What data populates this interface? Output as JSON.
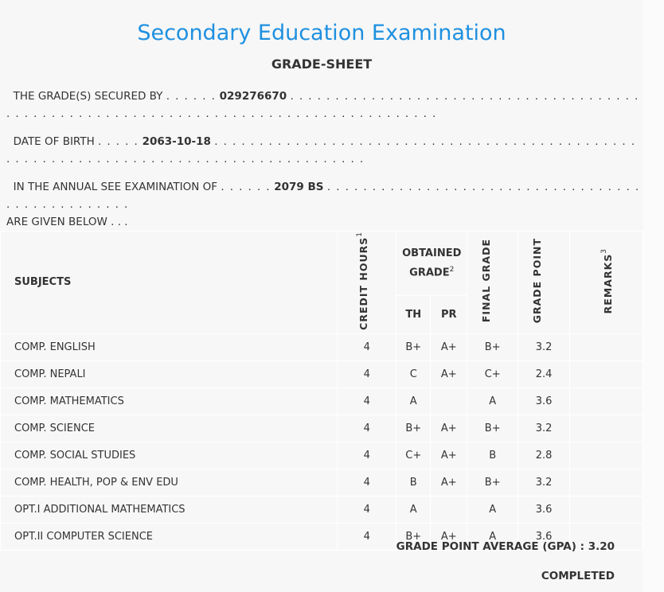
{
  "header": {
    "title": "Secondary Education Examination",
    "subtitle": "GRADE-SHEET"
  },
  "info": {
    "secured_by_label": "THE GRADE(S) SECURED BY",
    "secured_by_value": "029276670",
    "dob_label": "DATE OF BIRTH",
    "dob_value": "2063-10-18",
    "exam_label": "IN THE ANNUAL SEE EXAMINATION OF",
    "exam_value": "2079 BS",
    "exam_suffix": "ARE GIVEN BELOW . . .",
    "dots_short": ". . . . . .",
    "dots_short5": ". . . . .",
    "dots_long": ". . . . . . . . . . . . . . . . . . . . . . . . . . . . . . . . . . . . . . . . . . . . . . . . . . . . . . . . . . . . . . . . . . . . . . . . . . . . . . . . . . . . . . .",
    "dots_exam": ". . . . . . . . . . . . . . . . . . . . . . . . . . . . . . . . . . . . . . . . . . . . . . . . ."
  },
  "table": {
    "headers": {
      "subjects": "SUBJECTS",
      "credit_hours": "CREDIT HOURS",
      "credit_sup": "1",
      "obtained_grade": "OBTAINED GRADE",
      "obtained_sup": "2",
      "th": "TH",
      "pr": "PR",
      "final_grade": "FINAL GRADE",
      "grade_point": "GRADE POINT",
      "remarks": "REMARKS",
      "remarks_sup": "3"
    },
    "rows": [
      {
        "subject": "COMP. ENGLISH",
        "credit": "4",
        "th": "B+",
        "pr": "A+",
        "final": "B+",
        "gp": "3.2"
      },
      {
        "subject": "COMP. NEPALI",
        "credit": "4",
        "th": "C",
        "pr": "A+",
        "final": "C+",
        "gp": "2.4"
      },
      {
        "subject": "COMP. MATHEMATICS",
        "credit": "4",
        "th": "A",
        "pr": "",
        "final": "A",
        "gp": "3.6"
      },
      {
        "subject": "COMP. SCIENCE",
        "credit": "4",
        "th": "B+",
        "pr": "A+",
        "final": "B+",
        "gp": "3.2"
      },
      {
        "subject": "COMP. SOCIAL STUDIES",
        "credit": "4",
        "th": "C+",
        "pr": "A+",
        "final": "B",
        "gp": "2.8"
      },
      {
        "subject": "COMP. HEALTH, POP & ENV EDU",
        "credit": "4",
        "th": "B",
        "pr": "A+",
        "final": "B+",
        "gp": "3.2"
      },
      {
        "subject": "OPT.I ADDITIONAL MATHEMATICS",
        "credit": "4",
        "th": "A",
        "pr": "",
        "final": "A",
        "gp": "3.6"
      },
      {
        "subject": "OPT.II COMPUTER SCIENCE",
        "credit": "4",
        "th": "B+",
        "pr": "A+",
        "final": "A",
        "gp": "3.6"
      }
    ]
  },
  "footer": {
    "gpa_label": "GRADE POINT AVERAGE (GPA) :",
    "gpa_value": "3.20",
    "status": "COMPLETED"
  }
}
